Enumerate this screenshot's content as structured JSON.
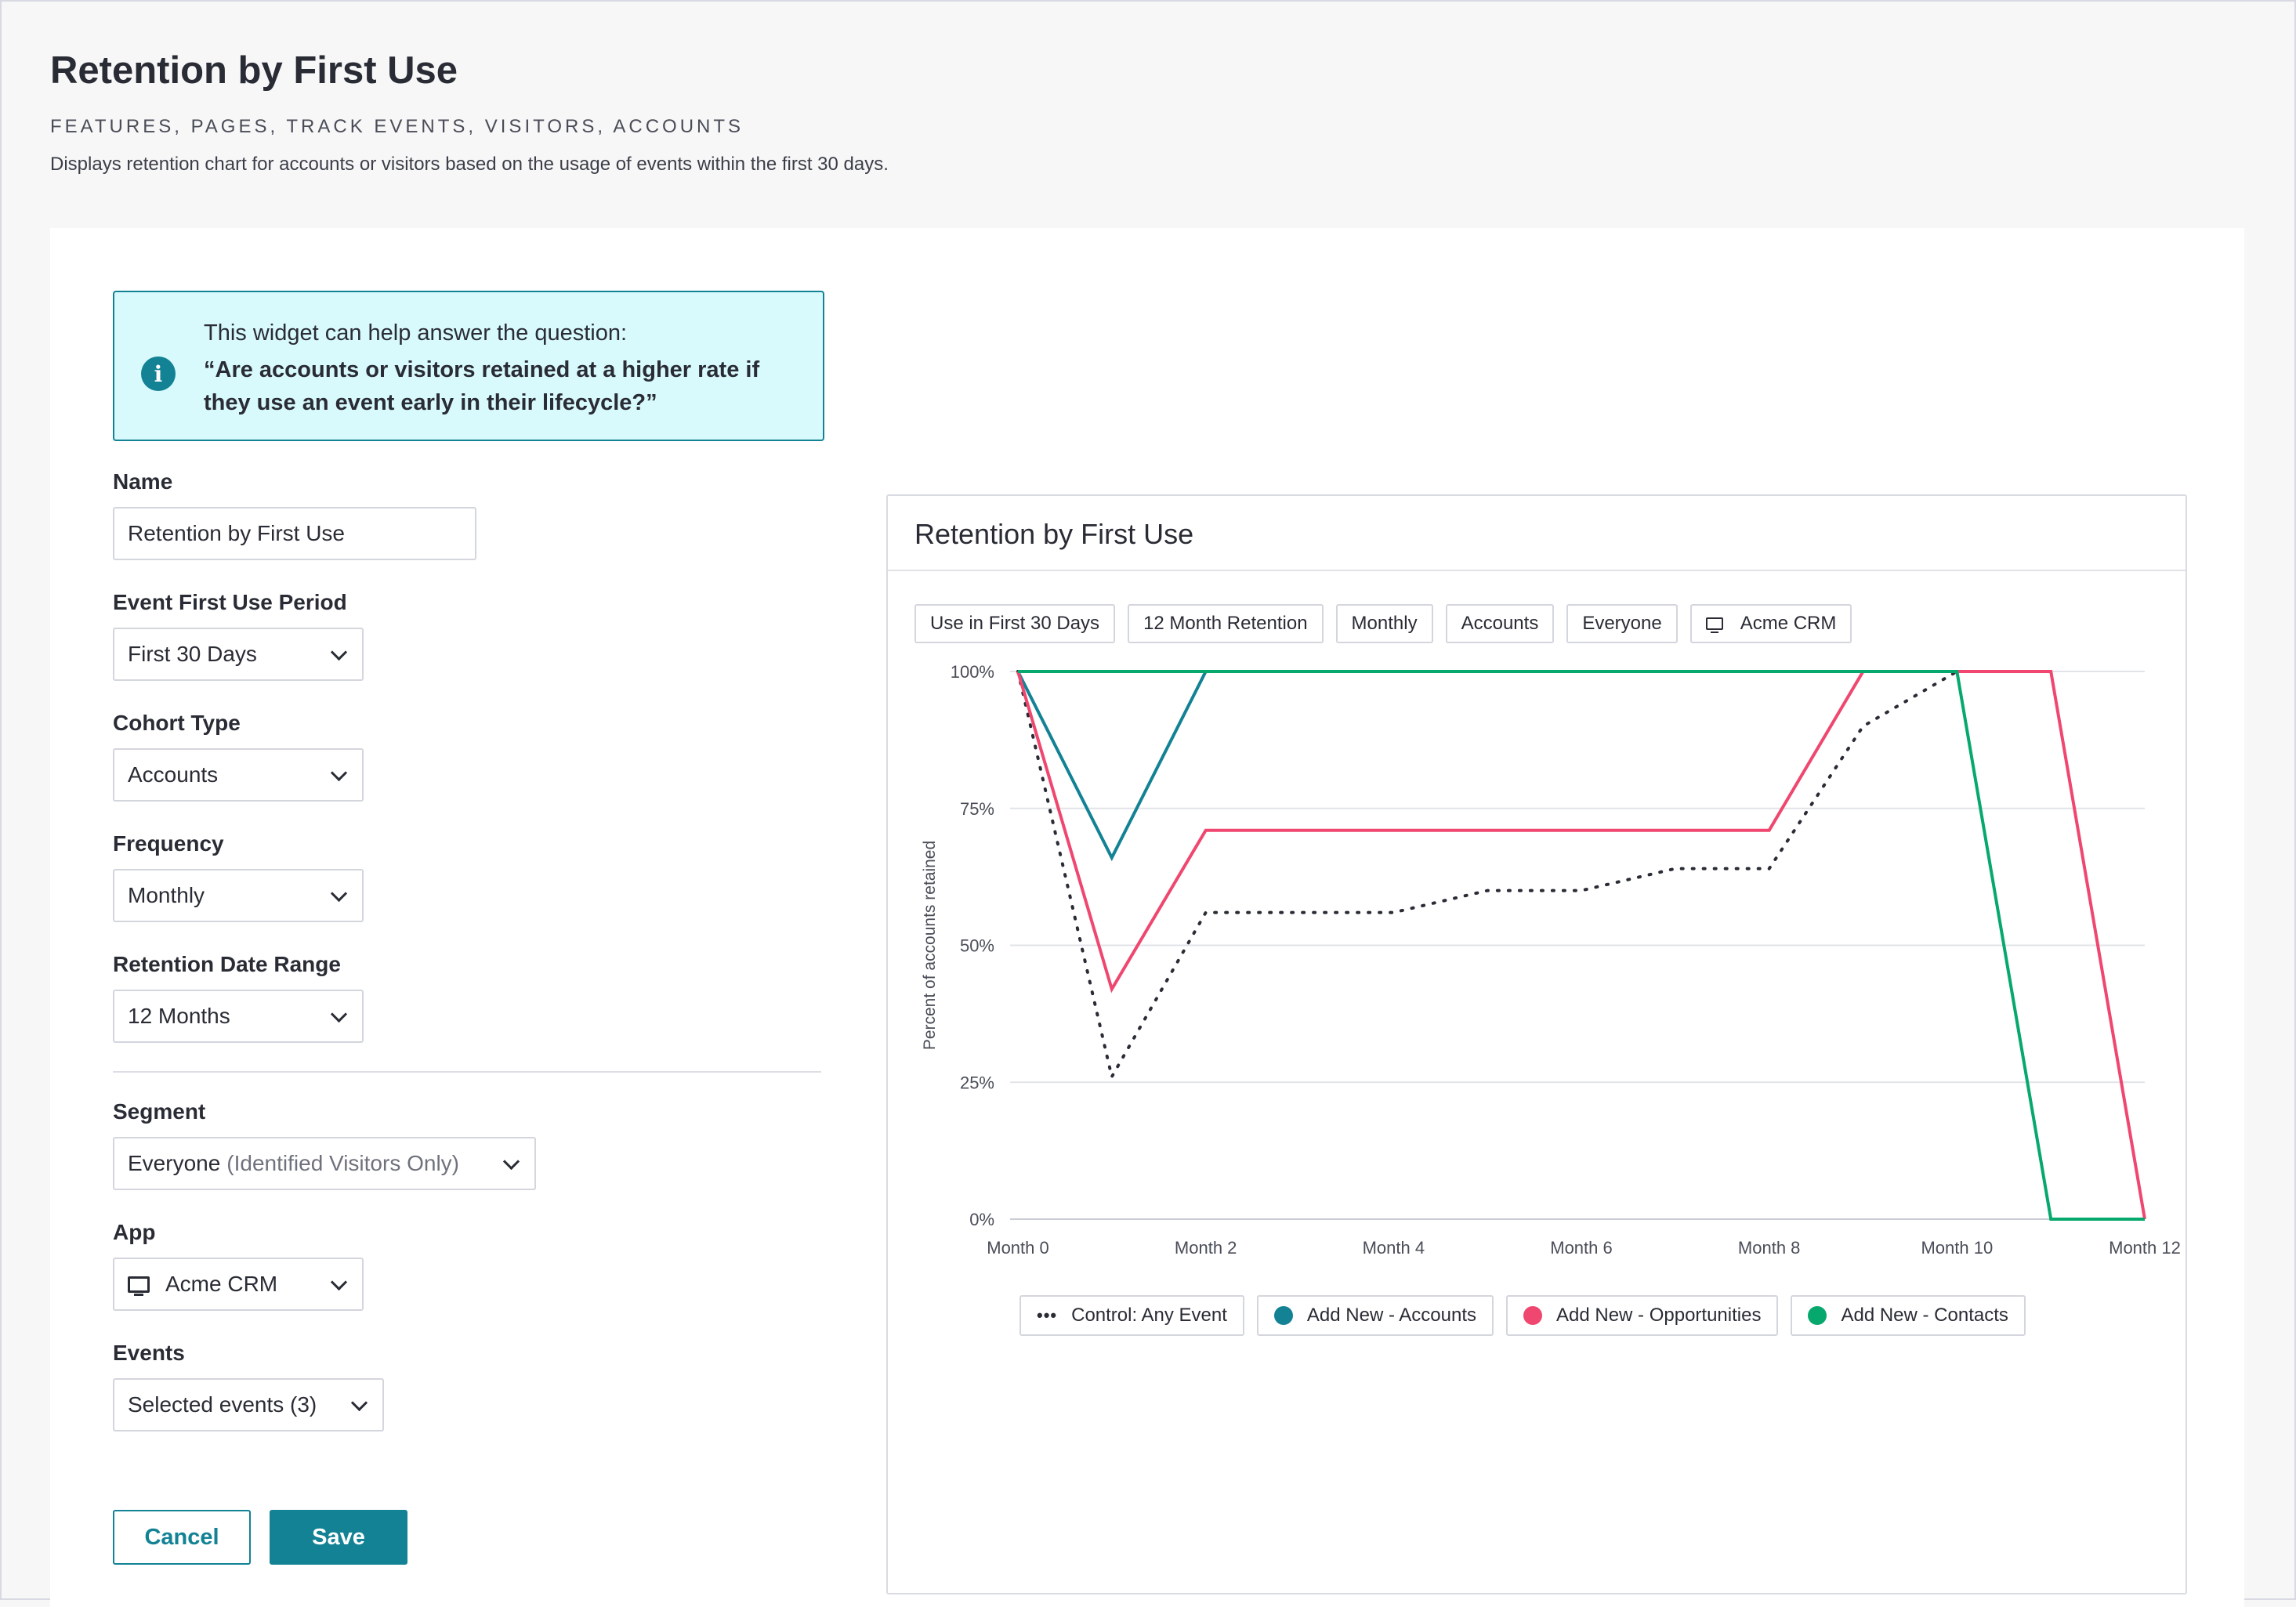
{
  "header": {
    "title": "Retention by First Use",
    "tags": "FEATURES, PAGES, TRACK EVENTS, VISITORS, ACCOUNTS",
    "description": "Displays retention chart for accounts or visitors based on the usage of events within the first 30 days."
  },
  "callout": {
    "intro": "This widget can help answer the question:",
    "question": "“Are accounts or visitors retained at a higher rate if they use an event early in their lifecycle?”",
    "icon": "info-icon"
  },
  "form": {
    "name": {
      "label": "Name",
      "value": "Retention by First Use"
    },
    "first_use_period": {
      "label": "Event First Use Period",
      "value": "First 30 Days"
    },
    "cohort_type": {
      "label": "Cohort Type",
      "value": "Accounts"
    },
    "frequency": {
      "label": "Frequency",
      "value": "Monthly"
    },
    "retention_range": {
      "label": "Retention Date Range",
      "value": "12 Months"
    },
    "segment": {
      "label": "Segment",
      "value": "Everyone",
      "qualifier": "(Identified Visitors Only)"
    },
    "app": {
      "label": "App",
      "value": "Acme CRM",
      "icon": "monitor-icon"
    },
    "events": {
      "label": "Events",
      "value": "Selected events (3)"
    },
    "cancel_label": "Cancel",
    "save_label": "Save"
  },
  "chart_panel": {
    "title": "Retention by First Use",
    "chips": [
      "Use in First 30 Days",
      "12 Month Retention",
      "Monthly",
      "Accounts",
      "Everyone",
      "Acme CRM"
    ],
    "chip_app_icon": "monitor-icon"
  },
  "chart_data": {
    "type": "line",
    "ylabel": "Percent of accounts retained",
    "ylim": [
      0,
      100
    ],
    "yticks": [
      "100%",
      "75%",
      "50%",
      "25%",
      "0%"
    ],
    "x": [
      0,
      1,
      2,
      3,
      4,
      5,
      6,
      7,
      8,
      9,
      10,
      11,
      12
    ],
    "xtick_labels": [
      {
        "x": 0,
        "label": "Month 0"
      },
      {
        "x": 2,
        "label": "Month 2"
      },
      {
        "x": 4,
        "label": "Month 4"
      },
      {
        "x": 6,
        "label": "Month 6"
      },
      {
        "x": 8,
        "label": "Month 8"
      },
      {
        "x": 10,
        "label": "Month 10"
      },
      {
        "x": 12,
        "label": "Month 12"
      }
    ],
    "grid": true,
    "legend_position": "bottom",
    "series": [
      {
        "name": "Control: Any Event",
        "color": "#2a2c35",
        "style": "dotted",
        "values": [
          100,
          26,
          56,
          56,
          56,
          60,
          60,
          64,
          64,
          90,
          100,
          null,
          null
        ]
      },
      {
        "name": "Add New - Accounts",
        "color": "#128294",
        "style": "solid",
        "values": [
          100,
          66,
          100,
          100,
          100,
          100,
          100,
          100,
          100,
          100,
          100,
          null,
          null
        ]
      },
      {
        "name": "Add New - Opportunities",
        "color": "#ef476f",
        "style": "solid",
        "values": [
          100,
          42,
          71,
          71,
          71,
          71,
          71,
          71,
          71,
          100,
          100,
          100,
          0
        ]
      },
      {
        "name": "Add New - Contacts",
        "color": "#07a86e",
        "style": "solid",
        "values": [
          100,
          100,
          100,
          100,
          100,
          100,
          100,
          100,
          100,
          100,
          100,
          0,
          0
        ]
      }
    ]
  }
}
